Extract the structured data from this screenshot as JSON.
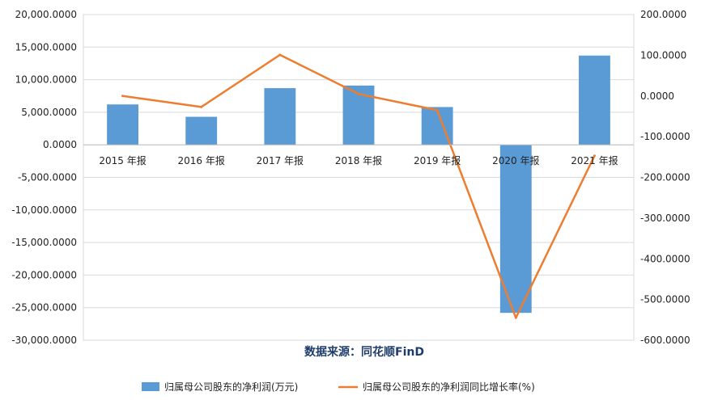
{
  "chart_data": {
    "type": "bar+line",
    "categories": [
      "2015 年报",
      "2016 年报",
      "2017 年报",
      "2018 年报",
      "2019 年报",
      "2020 年报",
      "2021 年报"
    ],
    "series": [
      {
        "name": "归属母公司股东的净利润(万元)",
        "type": "bar",
        "axis": "left",
        "color": "#5b9bd5",
        "values": [
          6200,
          4300,
          8700,
          9100,
          5800,
          -25800,
          13700
        ]
      },
      {
        "name": "归属母公司股东的净利润同比增长率(%)",
        "type": "line",
        "axis": "right",
        "color": "#ed7d31",
        "values": [
          0,
          -27,
          101,
          5,
          -35,
          -545,
          -147
        ]
      }
    ],
    "y_left": {
      "ylim": [
        -30000,
        20000
      ],
      "ticks": [
        20000,
        15000,
        10000,
        5000,
        0,
        -5000,
        -10000,
        -15000,
        -20000,
        -25000,
        -30000
      ],
      "tick_labels": [
        "20,000.0000",
        "15,000.0000",
        "10,000.0000",
        "5,000.0000",
        "0.0000",
        "-5,000.0000",
        "-10,000.0000",
        "-15,000.0000",
        "-20,000.0000",
        "-25,000.0000",
        "-30,000.0000"
      ]
    },
    "y_right": {
      "ylim": [
        -600,
        200
      ],
      "ticks": [
        200,
        100,
        0,
        -100,
        -200,
        -300,
        -400,
        -500,
        -600
      ],
      "tick_labels": [
        "200.0000",
        "100.0000",
        "0.0000",
        "-100.0000",
        "-200.0000",
        "-300.0000",
        "-400.0000",
        "-500.0000",
        "-600.0000"
      ]
    },
    "grid": true,
    "legend": "bottom",
    "source_text": "数据来源：同花顺FinD"
  }
}
